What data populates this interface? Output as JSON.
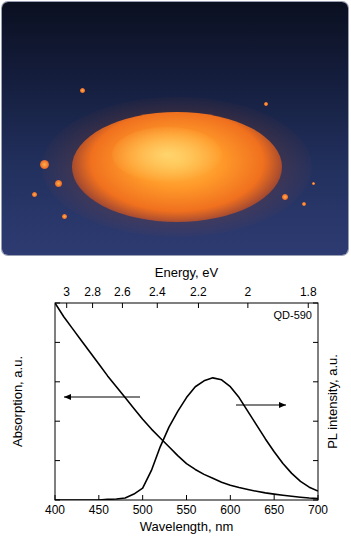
{
  "chart_data": {
    "type": "line",
    "x_label": "Wavelength, nm",
    "x2_label": "Energy, eV",
    "y_label": "Absorption, a.u.",
    "y2_label": "PL intensity, a.u.",
    "annotations": [
      "QD-590"
    ],
    "x": [
      400,
      410,
      420,
      430,
      440,
      450,
      460,
      470,
      480,
      490,
      500,
      510,
      520,
      530,
      540,
      550,
      560,
      570,
      580,
      590,
      600,
      610,
      620,
      630,
      640,
      650,
      660,
      670,
      680,
      690,
      700
    ],
    "series": [
      {
        "color": "#000000",
        "axis": "y",
        "values": [
          1.0,
          0.93,
          0.87,
          0.81,
          0.75,
          0.69,
          0.63,
          0.575,
          0.52,
          0.465,
          0.41,
          0.36,
          0.315,
          0.27,
          0.225,
          0.185,
          0.155,
          0.13,
          0.11,
          0.09,
          0.075,
          0.063,
          0.053,
          0.044,
          0.036,
          0.03,
          0.024,
          0.019,
          0.014,
          0.01,
          0.007
        ]
      },
      {
        "color": "#000000",
        "axis": "y2",
        "values": [
          0,
          0,
          0,
          0,
          0,
          0,
          0.003,
          0.005,
          0.01,
          0.03,
          0.06,
          0.15,
          0.27,
          0.37,
          0.45,
          0.52,
          0.575,
          0.605,
          0.62,
          0.61,
          0.575,
          0.52,
          0.45,
          0.38,
          0.31,
          0.245,
          0.185,
          0.135,
          0.095,
          0.065,
          0.045
        ]
      }
    ],
    "xlim": [
      400,
      700
    ],
    "xticks": [
      400,
      450,
      500,
      550,
      600,
      650,
      700
    ],
    "x2lim": [
      3.1,
      1.7714
    ],
    "x2ticks": [
      3,
      2.8,
      2.6,
      2.4,
      2.2,
      2,
      1.8
    ],
    "ylim": [
      0,
      1
    ],
    "yticks": [
      0,
      0.2,
      0.4,
      0.6,
      0.8,
      1
    ],
    "y2lim": [
      0,
      1
    ],
    "y2ticks": [
      0,
      0.2,
      0.4,
      0.6,
      0.8,
      1
    ],
    "tick_labels": "x",
    "grid": false
  }
}
